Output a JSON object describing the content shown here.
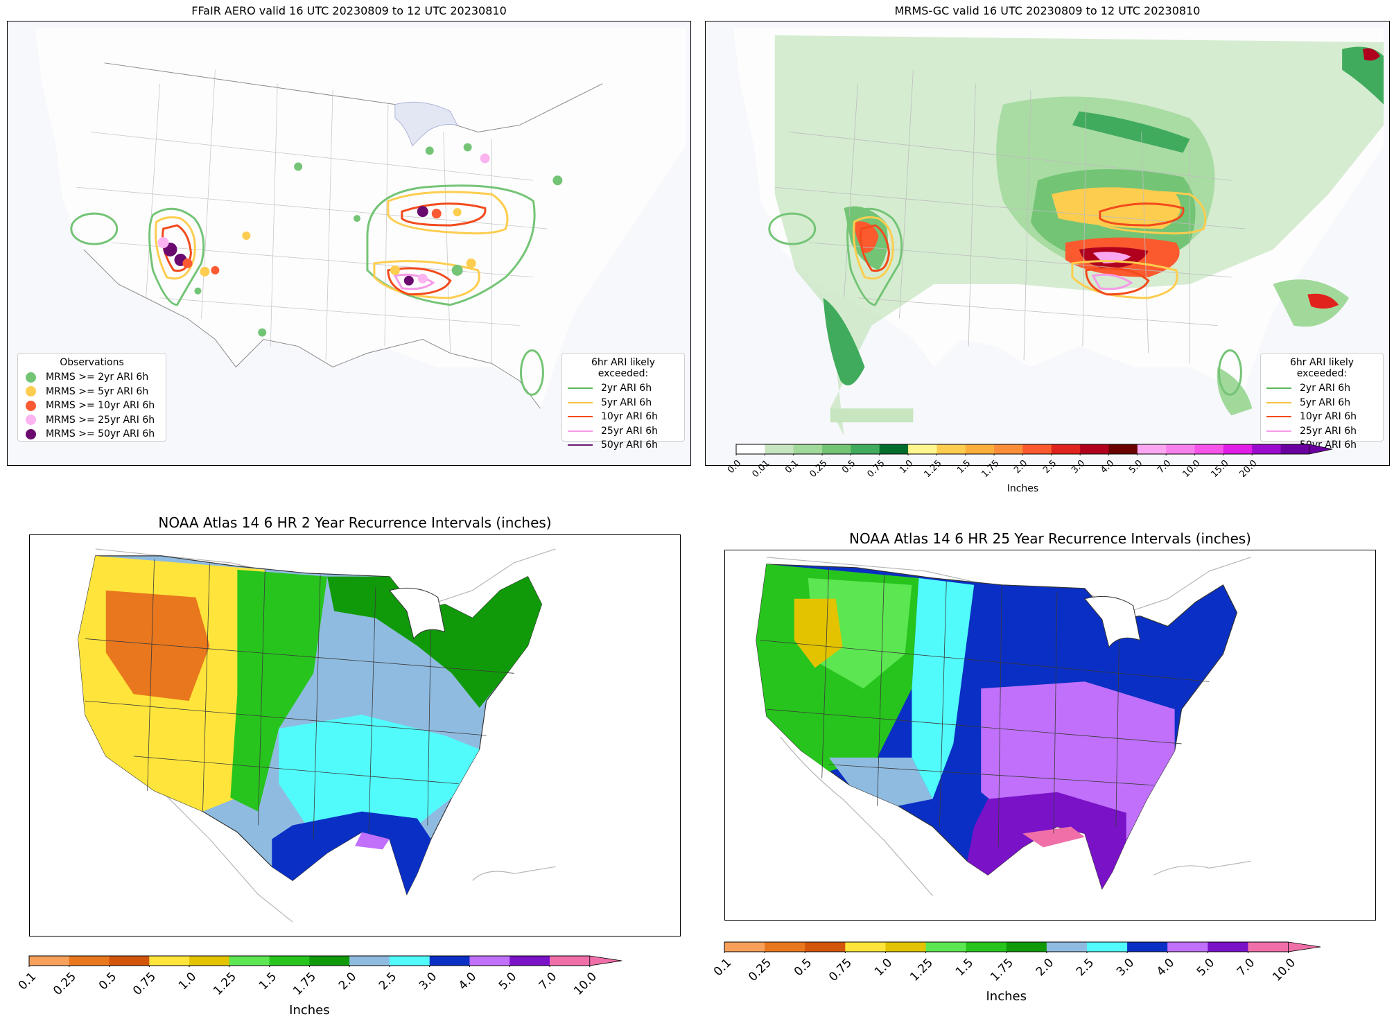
{
  "panels": {
    "ffair": {
      "title": "FFaIR AERO valid 16 UTC 20230809 to 12 UTC 20230810",
      "obs_legend": {
        "title": "Observations",
        "items": [
          {
            "label": "MRMS >= 2yr ARI 6h",
            "color": "#74c476"
          },
          {
            "label": "MRMS >= 5yr ARI 6h",
            "color": "#fdcd4f"
          },
          {
            "label": "MRMS >= 10yr ARI 6h",
            "color": "#fc5a33"
          },
          {
            "label": "MRMS >= 25yr ARI 6h",
            "color": "#fbb4f0"
          },
          {
            "label": "MRMS >= 50yr ARI 6h",
            "color": "#6a0a6e"
          }
        ]
      },
      "ari_legend": {
        "title": "6hr ARI likely exceeded:",
        "items": [
          {
            "label": "2yr ARI 6h",
            "color": "#5cb85c"
          },
          {
            "label": "5yr ARI 6h",
            "color": "#f5c242"
          },
          {
            "label": "10yr ARI 6h",
            "color": "#f24a1c"
          },
          {
            "label": "25yr ARI 6h",
            "color": "#f59ae8"
          },
          {
            "label": "50yr ARI 6h",
            "color": "#6a1a6e"
          }
        ]
      }
    },
    "mrms": {
      "title": "MRMS-GC valid 16 UTC 20230809 to 12 UTC 20230810",
      "ari_legend": {
        "title": "6hr ARI likely exceeded:",
        "items": [
          {
            "label": "2yr ARI 6h",
            "color": "#5cb85c"
          },
          {
            "label": "5yr ARI 6h",
            "color": "#f5c242"
          },
          {
            "label": "10yr ARI 6h",
            "color": "#f24a1c"
          },
          {
            "label": "25yr ARI 6h",
            "color": "#f59ae8"
          },
          {
            "label": "50yr ARI 6h",
            "color": "#6a1a6e"
          }
        ]
      },
      "colorbar": {
        "label": "Inches",
        "ticks": [
          "0.0",
          "0.01",
          "0.1",
          "0.25",
          "0.5",
          "0.75",
          "1.0",
          "1.25",
          "1.5",
          "1.75",
          "2.0",
          "2.5",
          "3.0",
          "4.0",
          "5.0",
          "7.0",
          "10.0",
          "15.0",
          "20.0"
        ],
        "colors": [
          "#ffffff",
          "#c7e6c0",
          "#a1d99b",
          "#74c476",
          "#41ab5d",
          "#006d2c",
          "#fff68f",
          "#fdcd4f",
          "#fdae3b",
          "#fc8d39",
          "#fb5a2e",
          "#e0231c",
          "#b0001e",
          "#6a0000",
          "#fba6f0",
          "#f880ec",
          "#f653e8",
          "#e01ee8",
          "#9b0ccf",
          "#6a00a0"
        ]
      }
    },
    "atlas2": {
      "title": "NOAA Atlas 14 6 HR 2 Year Recurrence Intervals (inches)",
      "colorbar": {
        "label": "Inches",
        "ticks": [
          "0.1",
          "0.25",
          "0.5",
          "0.75",
          "1.0",
          "1.25",
          "1.5",
          "1.75",
          "2.0",
          "2.5",
          "3.0",
          "4.0",
          "5.0",
          "7.0",
          "10.0"
        ],
        "colors": [
          "#f6a05a",
          "#e9771e",
          "#d3550a",
          "#ffe53b",
          "#e3c300",
          "#5ce651",
          "#27c41d",
          "#109a0a",
          "#8fbbe0",
          "#52fbfb",
          "#0a2fc4",
          "#c070fa",
          "#7a12c8",
          "#f06fa8"
        ]
      }
    },
    "atlas25": {
      "title": "NOAA Atlas 14 6 HR 25 Year Recurrence Intervals (inches)",
      "colorbar": {
        "label": "Inches",
        "ticks": [
          "0.1",
          "0.25",
          "0.5",
          "0.75",
          "1.0",
          "1.25",
          "1.5",
          "1.75",
          "2.0",
          "2.5",
          "3.0",
          "4.0",
          "5.0",
          "7.0",
          "10.0"
        ],
        "colors": [
          "#f6a05a",
          "#e9771e",
          "#d3550a",
          "#ffe53b",
          "#e3c300",
          "#5ce651",
          "#27c41d",
          "#109a0a",
          "#8fbbe0",
          "#52fbfb",
          "#0a2fc4",
          "#c070fa",
          "#7a12c8",
          "#f06fa8"
        ]
      }
    }
  }
}
